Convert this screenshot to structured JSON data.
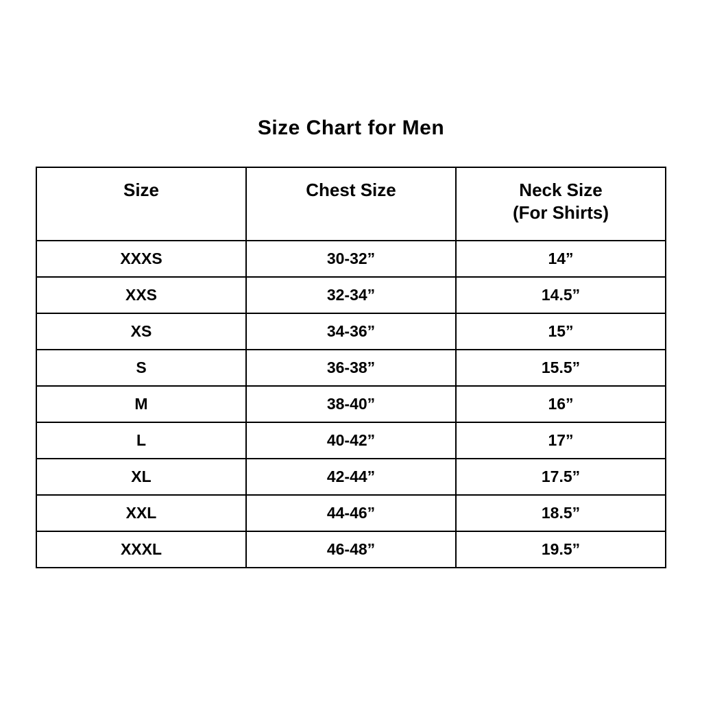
{
  "title": "Size Chart for Men",
  "table": {
    "headers": [
      {
        "label": "Size",
        "sub": ""
      },
      {
        "label": "Chest Size",
        "sub": ""
      },
      {
        "label": "Neck Size",
        "sub": "(For Shirts)"
      }
    ],
    "rows": [
      {
        "size": "XXXS",
        "chest": "30-32”",
        "neck": "14”"
      },
      {
        "size": "XXS",
        "chest": "32-34”",
        "neck": "14.5”"
      },
      {
        "size": "XS",
        "chest": "34-36”",
        "neck": "15”"
      },
      {
        "size": "S",
        "chest": "36-38”",
        "neck": "15.5”"
      },
      {
        "size": "M",
        "chest": "38-40”",
        "neck": "16”"
      },
      {
        "size": "L",
        "chest": "40-42”",
        "neck": "17”"
      },
      {
        "size": "XL",
        "chest": "42-44”",
        "neck": "17.5”"
      },
      {
        "size": "XXL",
        "chest": "44-46”",
        "neck": "18.5”"
      },
      {
        "size": "XXXL",
        "chest": "46-48”",
        "neck": "19.5”"
      }
    ]
  },
  "chart_data": {
    "type": "table",
    "title": "Size Chart for Men",
    "columns": [
      "Size",
      "Chest Size",
      "Neck Size (For Shirts)"
    ],
    "rows": [
      [
        "XXXS",
        "30-32”",
        "14”"
      ],
      [
        "XXS",
        "32-34”",
        "14.5”"
      ],
      [
        "XS",
        "34-36”",
        "15”"
      ],
      [
        "S",
        "36-38”",
        "15.5”"
      ],
      [
        "M",
        "38-40”",
        "16”"
      ],
      [
        "L",
        "40-42”",
        "17”"
      ],
      [
        "XL",
        "42-44”",
        "17.5”"
      ],
      [
        "XXL",
        "44-46”",
        "18.5”"
      ],
      [
        "XXXL",
        "46-48”",
        "19.5”"
      ]
    ]
  },
  "colors": {
    "background": "#ffffff",
    "text": "#000000",
    "border": "#000000"
  }
}
